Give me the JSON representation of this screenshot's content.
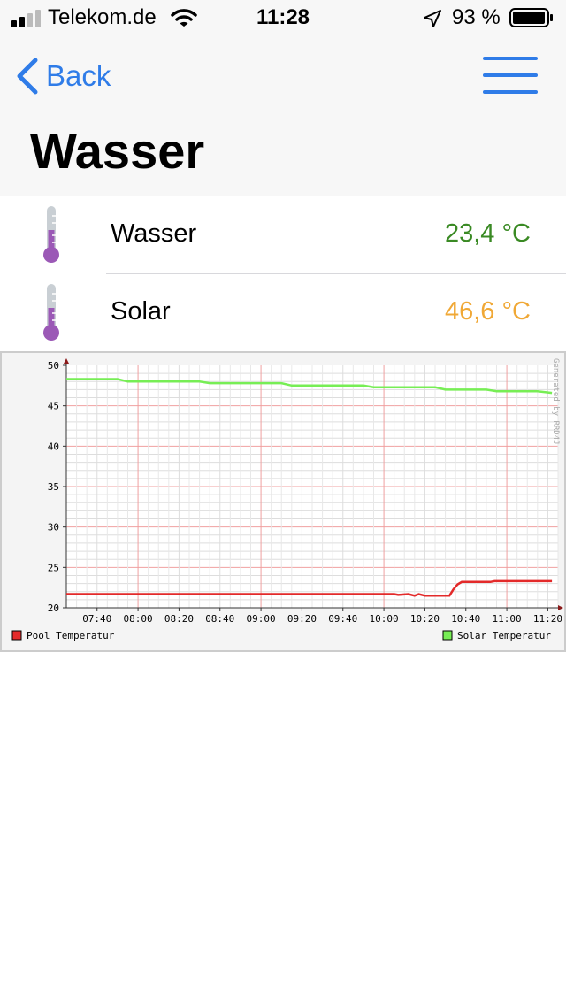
{
  "status_bar": {
    "carrier": "Telekom.de",
    "time": "11:28",
    "battery": "93 %",
    "icons": [
      "signal-icon",
      "wifi-icon",
      "location-arrow-icon",
      "battery-icon"
    ]
  },
  "nav": {
    "back_label": "Back",
    "title": "Wasser",
    "icons": [
      "chevron-left-icon",
      "hamburger-menu-icon"
    ],
    "accent": "#2f7ce8"
  },
  "sensors": [
    {
      "label": "Wasser",
      "value": "23,4 °C",
      "color": "#3a8a24",
      "icon": "thermometer-icon"
    },
    {
      "label": "Solar",
      "value": "46,6 °C",
      "color": "#f0a836",
      "icon": "thermometer-icon"
    }
  ],
  "chart_data": {
    "type": "line",
    "watermark": "Generated by RRD4J",
    "ylim": [
      20,
      50
    ],
    "yticks": [
      "50",
      "45",
      "40",
      "35",
      "30",
      "25",
      "20"
    ],
    "x_start": "07:25",
    "x_end": "11:25",
    "xticks": [
      "07:40",
      "08:00",
      "08:20",
      "08:40",
      "09:00",
      "09:20",
      "09:40",
      "10:00",
      "10:20",
      "10:40",
      "11:00",
      "11:20"
    ],
    "series": [
      {
        "name": "Pool Temperatur",
        "color": "#e32a2a",
        "points": [
          [
            "07:25",
            21.7
          ],
          [
            "10:05",
            21.7
          ],
          [
            "10:07",
            21.6
          ],
          [
            "10:12",
            21.7
          ],
          [
            "10:15",
            21.5
          ],
          [
            "10:17",
            21.7
          ],
          [
            "10:20",
            21.5
          ],
          [
            "10:32",
            21.5
          ],
          [
            "10:34",
            22.3
          ],
          [
            "10:36",
            22.9
          ],
          [
            "10:38",
            23.2
          ],
          [
            "10:52",
            23.2
          ],
          [
            "10:54",
            23.3
          ],
          [
            "11:22",
            23.3
          ]
        ]
      },
      {
        "name": "Solar Temperatur",
        "color": "#77ee55",
        "points": [
          [
            "07:25",
            48.3
          ],
          [
            "07:50",
            48.3
          ],
          [
            "07:55",
            48.0
          ],
          [
            "08:30",
            48.0
          ],
          [
            "08:35",
            47.8
          ],
          [
            "09:10",
            47.8
          ],
          [
            "09:15",
            47.5
          ],
          [
            "09:50",
            47.5
          ],
          [
            "09:55",
            47.3
          ],
          [
            "10:25",
            47.3
          ],
          [
            "10:30",
            47.0
          ],
          [
            "10:50",
            47.0
          ],
          [
            "10:55",
            46.8
          ],
          [
            "11:15",
            46.8
          ],
          [
            "11:22",
            46.6
          ]
        ]
      }
    ]
  }
}
